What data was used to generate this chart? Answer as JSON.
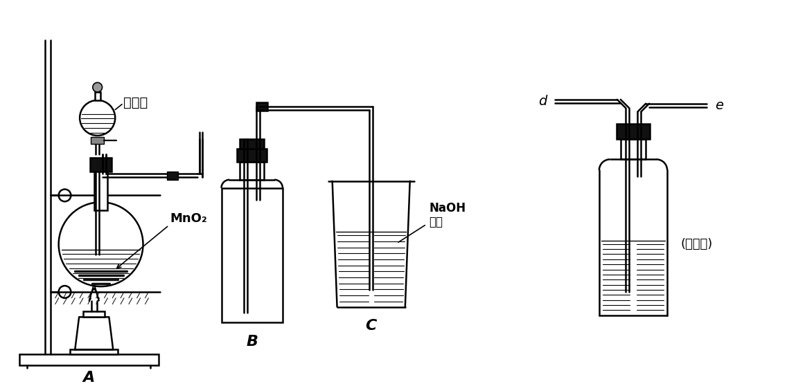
{
  "bg_color": "#ffffff",
  "line_color": "#000000",
  "label_A": "A",
  "label_B": "B",
  "label_C": "C",
  "label_d": "d",
  "label_e": "e",
  "label_wash": "(洗气瓶)",
  "label_conc_hcl": "浓盐酸",
  "label_mno2": "MnO₂",
  "label_naoh": "NaOH\n溶液",
  "figsize": [
    11.49,
    5.58
  ],
  "dpi": 100
}
